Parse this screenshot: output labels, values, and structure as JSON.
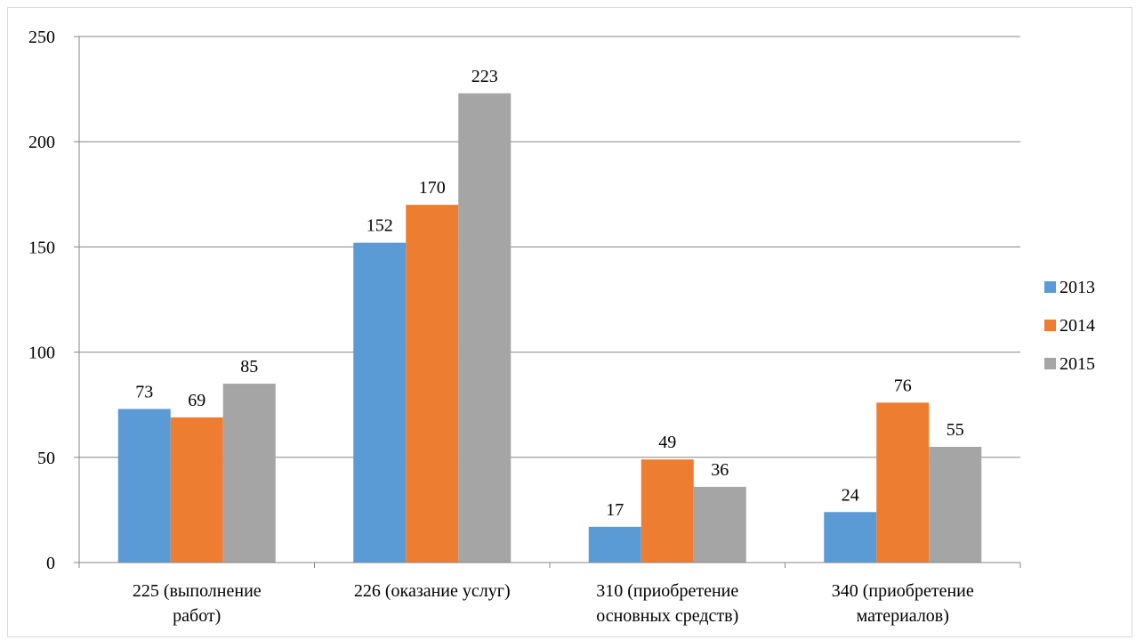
{
  "chart_data": {
    "type": "bar",
    "categories": [
      [
        "225 (выполнение",
        "работ)"
      ],
      [
        "226 (оказание услуг)"
      ],
      [
        "310 (приобретение",
        "основных средств)"
      ],
      [
        "340 (приобретение",
        "материалов)"
      ]
    ],
    "series": [
      {
        "name": "2013",
        "color": "#5b9bd5",
        "values": [
          73,
          152,
          17,
          24
        ]
      },
      {
        "name": "2014",
        "color": "#ed7d31",
        "values": [
          69,
          170,
          49,
          76
        ]
      },
      {
        "name": "2015",
        "color": "#a5a5a5",
        "values": [
          85,
          223,
          36,
          55
        ]
      }
    ],
    "yticks": [
      0,
      50,
      100,
      150,
      200,
      250
    ],
    "ylim": [
      0,
      250
    ],
    "grid": true,
    "gridColor": "#868686",
    "legend": "right",
    "data_labels": true
  }
}
